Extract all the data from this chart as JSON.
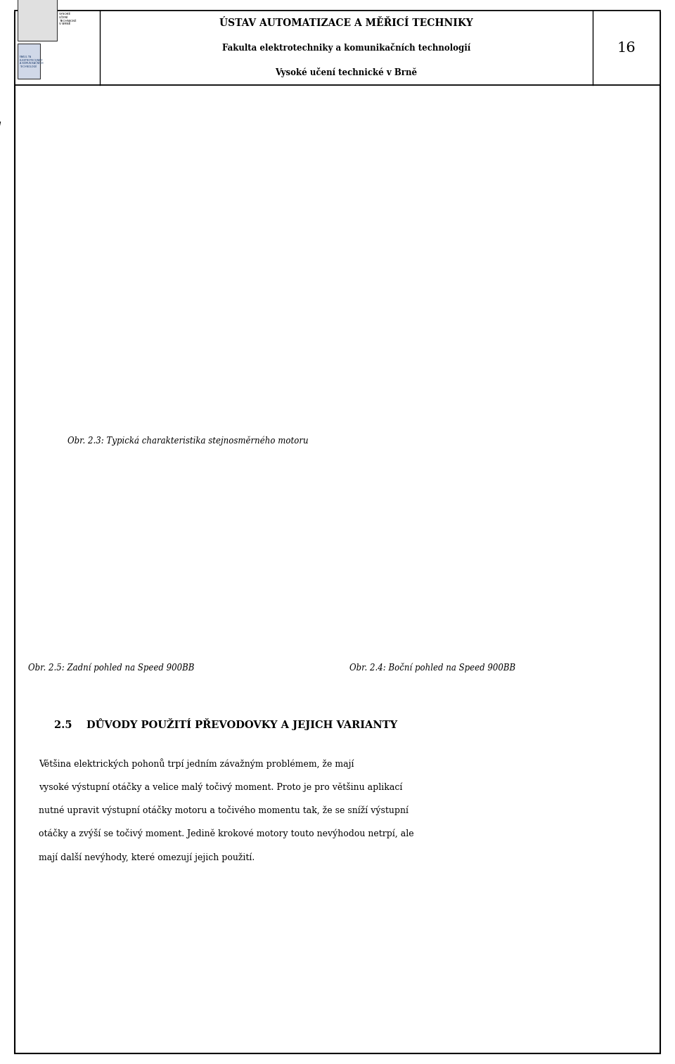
{
  "page_width": 9.6,
  "page_height": 15.14,
  "bg_color": "#ffffff",
  "header": {
    "title_line1": "ÚSTAV AUTOMATIZACE A MĚŘICÍ TECHNIKY",
    "title_line2": "Fakulta elektrotechniky a komunikačních technologií",
    "title_line3": "Vysoké učení technické v Brně",
    "page_number": "16"
  },
  "chart_caption": "Obr. 2.3: Typická charakteristika stejnosměrného motoru",
  "photo_caption_left": "Obr. 2.5: Zadní pohled na Speed 900BB",
  "photo_caption_right": "Obr. 2.4: Boční pohled na Speed 900BB",
  "section_title": "2.5    DŮVODY POUŽITÍ PŘEVODOVKY A JEJICH VARIANTY",
  "body_lines": [
    "Většina elektrických pohonů trpí jedním závažným problémem, že mají",
    "vysoké výstupní otáčky a velice malý točivý moment. Proto je pro většinu aplikací",
    "nutné upravit výstupní otáčky motoru a točivého momentu tak, že se sníží výstupní",
    "otáčky a zvýší se točivý moment. Jedině krokové motory touto nevýhodou netrpí, ale",
    "mají další nevýhody, které omezují jejich použití."
  ],
  "photo_bg_color": "#c0392b",
  "photo_left_color": "#8a9ba8",
  "photo_right_color": "#b0b8c0"
}
